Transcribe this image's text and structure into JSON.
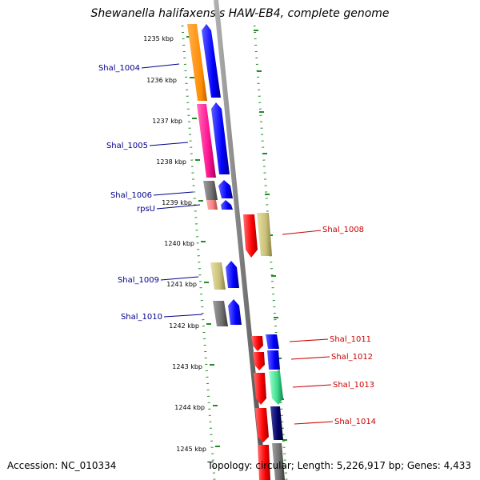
{
  "title": "Shewanella halifaxensis HAW-EB4, complete genome",
  "footer": {
    "accession": "Accession: NC_010334",
    "topology": "Topology: circular; Length: 5,226,917 bp; Genes: 4,433"
  },
  "ticks": [
    "1235 kbp",
    "1236 kbp",
    "1237 kbp",
    "1238 kbp",
    "1239 kbp",
    "1240 kbp",
    "1241 kbp",
    "1242 kbp",
    "1243 kbp",
    "1244 kbp",
    "1245 kbp"
  ],
  "genes_left": [
    "Shal_1004",
    "Shal_1005",
    "Shal_1006",
    "rpsU",
    "Shal_1009",
    "Shal_1010"
  ],
  "genes_right": [
    "Shal_1008",
    "Shal_1011",
    "Shal_1012",
    "Shal_1013",
    "Shal_1014"
  ],
  "colors": {
    "orange": "#ff8c00",
    "blue": "#0000ff",
    "magenta": "#ff1493",
    "grey": "#6e6e6e",
    "pink": "#f08080",
    "khaki": "#c8c078",
    "red": "#ff0000",
    "green": "#3cdc8c",
    "navy": "#000066",
    "dots": "#228b22"
  }
}
